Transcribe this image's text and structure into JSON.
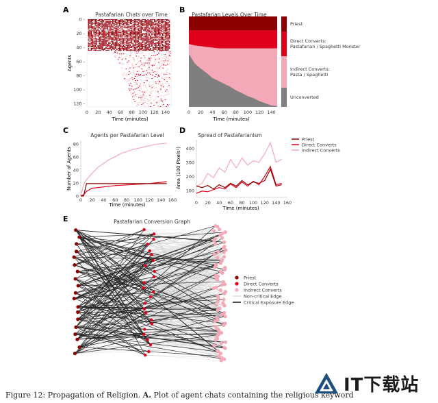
{
  "caption": {
    "prefix": "Figure 12: Propagation of Religion. ",
    "bold": "A.",
    "rest": " Plot of agent chats containing the religious keyword"
  },
  "watermark": {
    "text": "IT下载站"
  },
  "colors": {
    "priest": "#8b0000",
    "direct": "#e0001b",
    "indirect": "#f4a9b8",
    "unconverted": "#7f7f7f",
    "critical_edge": "#222222",
    "noncritical_edge": "#c9c9c9"
  },
  "chart_data": [
    {
      "panel": "A",
      "type": "heatmap",
      "title": "Pastafarian Chats over Time",
      "xlabel": "Time (minutes)",
      "ylabel": "Agents",
      "xticks": [
        0,
        20,
        40,
        60,
        80,
        100,
        120,
        140
      ],
      "yticks": [
        0,
        20,
        40,
        60,
        80,
        100,
        120
      ],
      "xlim": [
        0,
        150
      ],
      "ylim": [
        0,
        125
      ],
      "description_levels": {
        "dense_agents": [
          0,
          45
        ],
        "sparse_agents": [
          45,
          125
        ]
      }
    },
    {
      "panel": "B",
      "type": "area",
      "title": "Pastafarian Levels Over Time",
      "xlabel": "Time (minutes)",
      "xticks": [
        0,
        20,
        40,
        60,
        80,
        100,
        120,
        140
      ],
      "xlim": [
        0,
        150
      ],
      "ylim": [
        0,
        125
      ],
      "legend": [
        {
          "label": "Priest",
          "color": "#8b0000"
        },
        {
          "label": "Direct Converts:",
          "label2": "Pastafarian / Spaghetti Monster",
          "color": "#e0001b"
        },
        {
          "label": "Indirect Converts:",
          "label2": "Pasta / Spaghetti",
          "color": "#f4a9b8"
        },
        {
          "label": "Unconverted",
          "color": "#7f7f7f"
        }
      ],
      "x": [
        0,
        10,
        20,
        30,
        40,
        50,
        60,
        70,
        80,
        90,
        100,
        110,
        120,
        130,
        140,
        150
      ],
      "priest_upto": [
        19,
        19,
        19,
        19,
        19,
        19,
        19,
        19,
        19,
        19,
        19,
        19,
        19,
        19,
        19,
        19
      ],
      "direct_upto": [
        38,
        40,
        41,
        42,
        43,
        44,
        44,
        44,
        44,
        44,
        44,
        44,
        44,
        44,
        44,
        44
      ],
      "indirect_upto": [
        52,
        65,
        72,
        78,
        85,
        89,
        93,
        97,
        102,
        106,
        110,
        113,
        117,
        120,
        123,
        124
      ]
    },
    {
      "panel": "C",
      "type": "line",
      "title": "Agents per Pastafarian Level",
      "xlabel": "Time (minutes)",
      "ylabel": "Number of Agents",
      "xticks": [
        0,
        20,
        40,
        60,
        80,
        100,
        120,
        140,
        160
      ],
      "yticks": [
        0,
        20,
        40,
        60,
        80
      ],
      "xlim": [
        0,
        160
      ],
      "ylim": [
        0,
        85
      ],
      "series": [
        {
          "key": "indirect",
          "x": [
            0,
            5,
            10,
            20,
            30,
            40,
            50,
            60,
            70,
            80,
            90,
            100,
            110,
            120,
            130,
            140,
            150
          ],
          "y": [
            0,
            18,
            25,
            35,
            44,
            50,
            56,
            60,
            65,
            68,
            71,
            73,
            75,
            77,
            79,
            80,
            81
          ]
        },
        {
          "key": "direct",
          "x": [
            0,
            5,
            10,
            20,
            40,
            60,
            80,
            100,
            120,
            130,
            140,
            150
          ],
          "y": [
            0,
            2,
            7,
            12,
            14,
            16,
            17,
            18,
            19,
            20,
            21,
            22
          ]
        },
        {
          "key": "priest",
          "x": [
            0,
            5,
            10,
            150
          ],
          "y": [
            0,
            0,
            19,
            19
          ]
        }
      ]
    },
    {
      "panel": "D",
      "type": "line",
      "title": "Spread of Pastafarianism",
      "xlabel": "Time (minutes)",
      "ylabel": "Area (100 Pixels²)",
      "xticks": [
        0,
        20,
        40,
        60,
        80,
        100,
        120,
        140,
        160
      ],
      "yticks": [
        100,
        200,
        300,
        400
      ],
      "xlim": [
        0,
        160
      ],
      "ylim": [
        50,
        460
      ],
      "legend": [
        "Priest",
        "Direct Converts",
        "Indirect Converts"
      ],
      "series": [
        {
          "key": "priest",
          "x": [
            0,
            10,
            20,
            30,
            40,
            50,
            60,
            70,
            80,
            90,
            100,
            110,
            120,
            130,
            140,
            150
          ],
          "y": [
            130,
            120,
            135,
            110,
            140,
            120,
            150,
            130,
            170,
            140,
            160,
            150,
            170,
            250,
            130,
            140
          ]
        },
        {
          "key": "direct",
          "x": [
            0,
            10,
            20,
            30,
            40,
            50,
            60,
            70,
            80,
            90,
            100,
            110,
            120,
            130,
            140,
            150
          ],
          "y": [
            80,
            95,
            90,
            105,
            120,
            110,
            145,
            120,
            160,
            130,
            165,
            140,
            200,
            270,
            140,
            150
          ]
        },
        {
          "key": "indirect",
          "x": [
            0,
            10,
            20,
            30,
            40,
            50,
            60,
            70,
            80,
            90,
            100,
            110,
            120,
            130,
            140,
            150
          ],
          "y": [
            130,
            150,
            220,
            190,
            260,
            230,
            320,
            260,
            330,
            280,
            310,
            300,
            360,
            440,
            300,
            320
          ]
        }
      ]
    },
    {
      "panel": "E",
      "type": "network",
      "title": "Pastafarian Conversion Graph",
      "legend": [
        "Priest",
        "Direct Converts",
        "Indirect Converts",
        "Non-critical Edge",
        "Critical Exposure Edge"
      ],
      "columns": {
        "priest_count": 19,
        "direct_count": 25,
        "indirect_count": 80
      }
    }
  ]
}
